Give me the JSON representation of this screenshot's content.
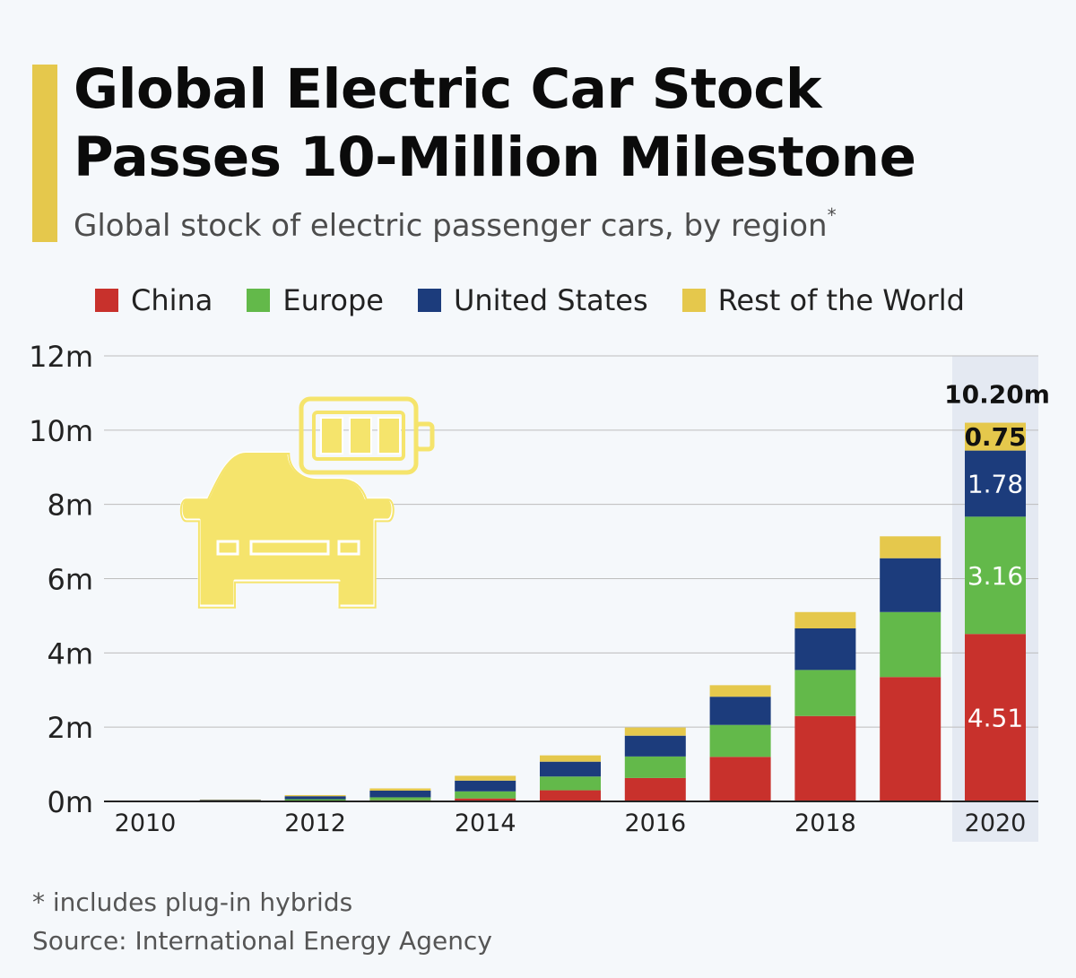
{
  "header": {
    "title_line1": "Global Electric Car Stock",
    "title_line2": "Passes 10-Million Milestone",
    "subtitle": "Global stock of electric passenger cars, by region",
    "subtitle_mark": "*"
  },
  "colors": {
    "accent": "#e5c84c",
    "china": "#c8312c",
    "europe": "#63b94a",
    "united_states": "#1c3c7c",
    "rest_of_world": "#e5c84c",
    "illustration": "#f5e46c",
    "highlight": "#e4e9f2"
  },
  "legend": [
    {
      "label": "China",
      "color": "#c8312c"
    },
    {
      "label": "Europe",
      "color": "#63b94a"
    },
    {
      "label": "United States",
      "color": "#1c3c7c"
    },
    {
      "label": "Rest of the World",
      "color": "#e5c84c"
    }
  ],
  "illustration": {
    "icon": "electric-car-battery-icon"
  },
  "chart_data": {
    "type": "bar",
    "stacked": true,
    "categories": [
      "2010",
      "2011",
      "2012",
      "2013",
      "2014",
      "2015",
      "2016",
      "2017",
      "2018",
      "2019",
      "2020"
    ],
    "x_tick_labels": [
      "2010",
      "",
      "2012",
      "",
      "2014",
      "",
      "2016",
      "",
      "2018",
      "",
      "2020"
    ],
    "series": [
      {
        "name": "China",
        "color": "#c8312c",
        "values": [
          0.0,
          0.01,
          0.02,
          0.03,
          0.08,
          0.3,
          0.63,
          1.2,
          2.3,
          3.35,
          4.51
        ]
      },
      {
        "name": "Europe",
        "color": "#63b94a",
        "values": [
          0.0,
          0.01,
          0.04,
          0.08,
          0.19,
          0.37,
          0.58,
          0.86,
          1.24,
          1.75,
          3.16
        ]
      },
      {
        "name": "United States",
        "color": "#1c3c7c",
        "values": [
          0.0,
          0.02,
          0.08,
          0.18,
          0.29,
          0.4,
          0.56,
          0.76,
          1.12,
          1.45,
          1.78
        ]
      },
      {
        "name": "Rest of the World",
        "color": "#e5c84c",
        "values": [
          0.0,
          0.01,
          0.03,
          0.06,
          0.13,
          0.17,
          0.22,
          0.31,
          0.44,
          0.59,
          0.75
        ]
      }
    ],
    "y_ticks": [
      0,
      2,
      4,
      6,
      8,
      10,
      12
    ],
    "y_tick_labels": [
      "0m",
      "2m",
      "4m",
      "6m",
      "8m",
      "10m",
      "12m"
    ],
    "ylim": [
      0,
      12
    ],
    "grid": true,
    "legend_position": "top",
    "highlight_category": "2020",
    "data_labels": [
      {
        "category": "2020",
        "series": "China",
        "text": "4.51"
      },
      {
        "category": "2020",
        "series": "Europe",
        "text": "3.16"
      },
      {
        "category": "2020",
        "series": "United States",
        "text": "1.78"
      },
      {
        "category": "2020",
        "series": "Rest of the World",
        "text": "0.75"
      }
    ],
    "total_label": {
      "category": "2020",
      "text": "10.20m",
      "value": 10.2
    }
  },
  "footer": {
    "footnote": "* includes plug-in hybrids",
    "source": "Source: International Energy Agency"
  }
}
